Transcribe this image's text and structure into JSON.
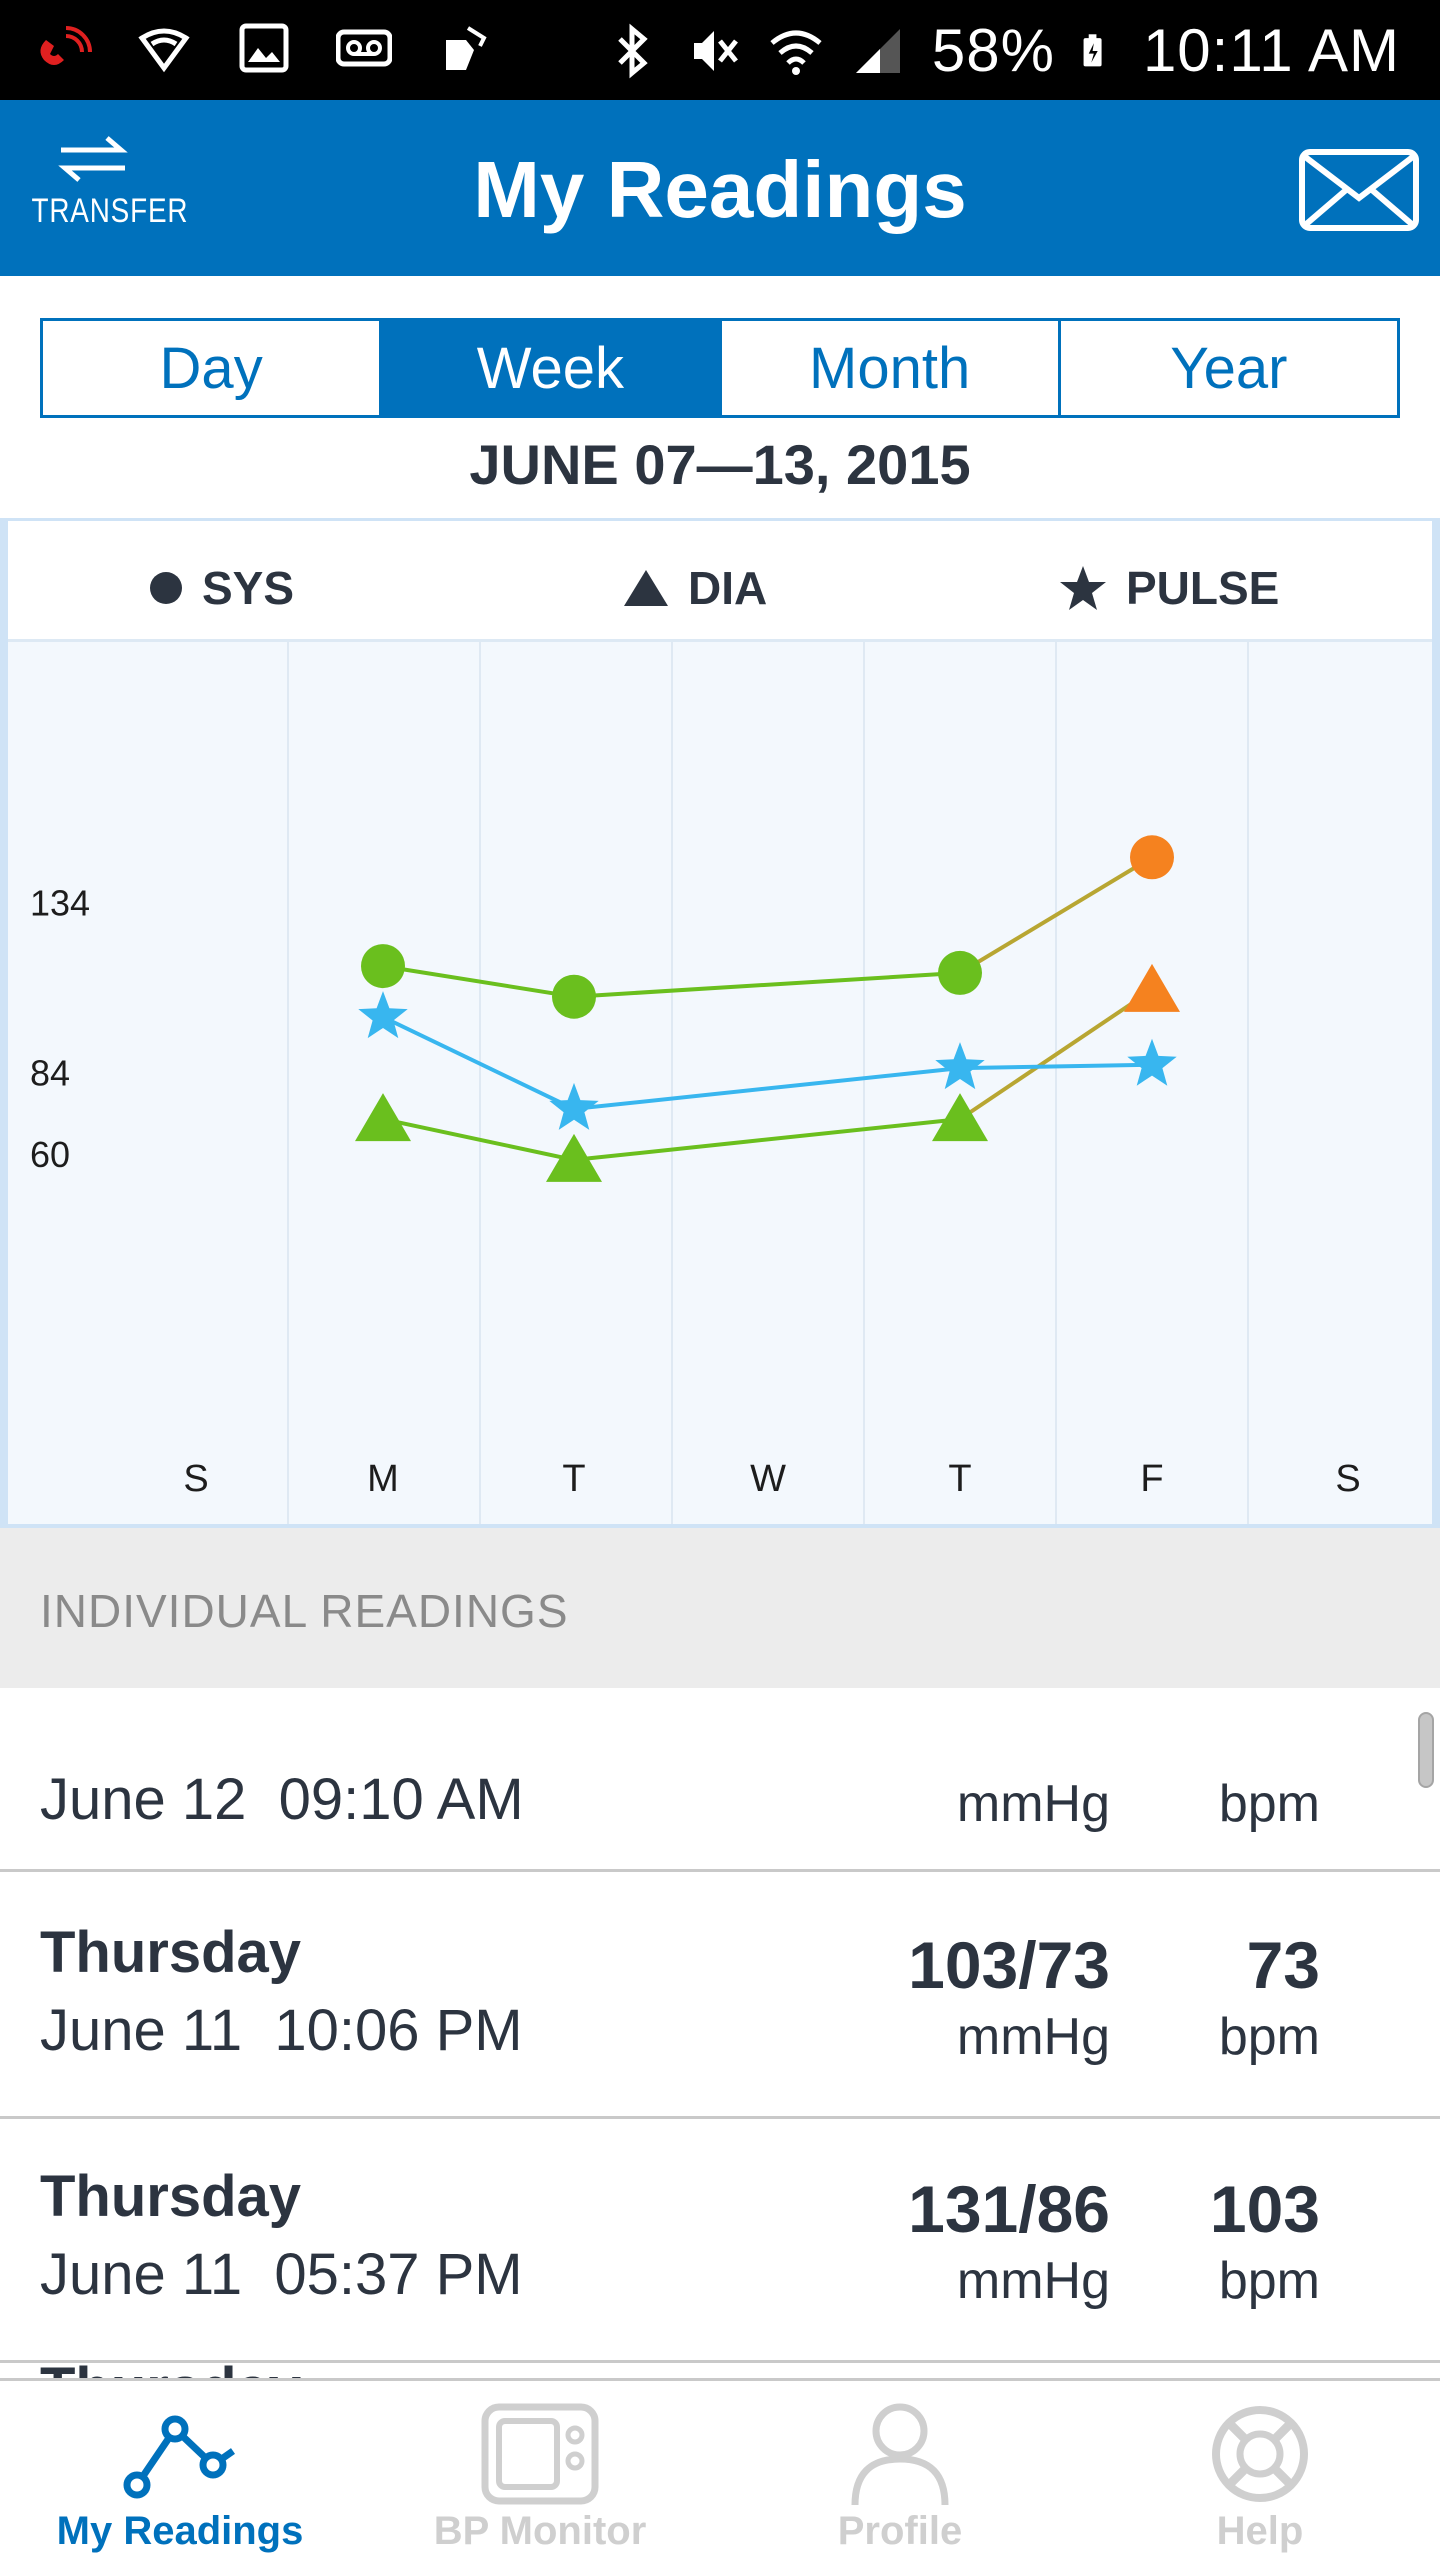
{
  "status_bar": {
    "battery": "58%",
    "time": "10:11 AM"
  },
  "header": {
    "transfer_label": "TRANSFER",
    "title": "My Readings"
  },
  "tabs": [
    {
      "label": "Day",
      "active": false
    },
    {
      "label": "Week",
      "active": true
    },
    {
      "label": "Month",
      "active": false
    },
    {
      "label": "Year",
      "active": false
    }
  ],
  "date_range": "JUNE 07—13, 2015",
  "legend": {
    "sys": "SYS",
    "dia": "DIA",
    "pulse": "PULSE"
  },
  "chart_data": {
    "type": "line",
    "categories": [
      "S",
      "M",
      "T",
      "W",
      "T",
      "F",
      "S"
    ],
    "y_tick_labels": [
      "134",
      "84",
      "60"
    ],
    "series": [
      {
        "name": "SYS",
        "marker": "circle",
        "points": [
          [
            1,
            115
          ],
          [
            2,
            106
          ],
          [
            4,
            113
          ],
          [
            5,
            147
          ]
        ],
        "colors": [
          "#6abf1e",
          "#6abf1e",
          "#6abf1e",
          "#f5821f"
        ]
      },
      {
        "name": "DIA",
        "marker": "triangle",
        "points": [
          [
            1,
            70
          ],
          [
            2,
            58
          ],
          [
            4,
            70
          ],
          [
            5,
            108
          ]
        ],
        "colors": [
          "#6abf1e",
          "#6abf1e",
          "#6abf1e",
          "#f5821f"
        ]
      },
      {
        "name": "PULSE",
        "marker": "star",
        "points": [
          [
            1,
            100
          ],
          [
            2,
            73
          ],
          [
            4,
            85
          ],
          [
            5,
            86
          ]
        ],
        "colors": [
          "#38b6ef",
          "#38b6ef",
          "#38b6ef",
          "#38b6ef"
        ]
      }
    ],
    "colors": {
      "normal": "#6abf1e",
      "high": "#f5821f",
      "pulse": "#38b6ef"
    }
  },
  "section_header": "INDIVIDUAL READINGS",
  "readings": [
    {
      "day": "",
      "datetime": "June 12  09:10 AM",
      "bp": "",
      "bp_unit": "mmHg",
      "pulse": "",
      "pulse_unit": "bpm"
    },
    {
      "day": "Thursday",
      "datetime": "June 11  10:06 PM",
      "bp": "103/73",
      "bp_unit": "mmHg",
      "pulse": "73",
      "pulse_unit": "bpm"
    },
    {
      "day": "Thursday",
      "datetime": "June 11  05:37 PM",
      "bp": "131/86",
      "bp_unit": "mmHg",
      "pulse": "103",
      "pulse_unit": "bpm"
    },
    {
      "day": "Thursday",
      "datetime": "",
      "bp": "",
      "bp_unit": "",
      "pulse": "",
      "pulse_unit": ""
    }
  ],
  "bottom_nav": [
    {
      "label": "My Readings",
      "icon": "readings-graph-icon",
      "active": true
    },
    {
      "label": "BP Monitor",
      "icon": "bp-monitor-icon",
      "active": false
    },
    {
      "label": "Profile",
      "icon": "profile-person-icon",
      "active": false
    },
    {
      "label": "Help",
      "icon": "help-lifebuoy-icon",
      "active": false
    }
  ]
}
